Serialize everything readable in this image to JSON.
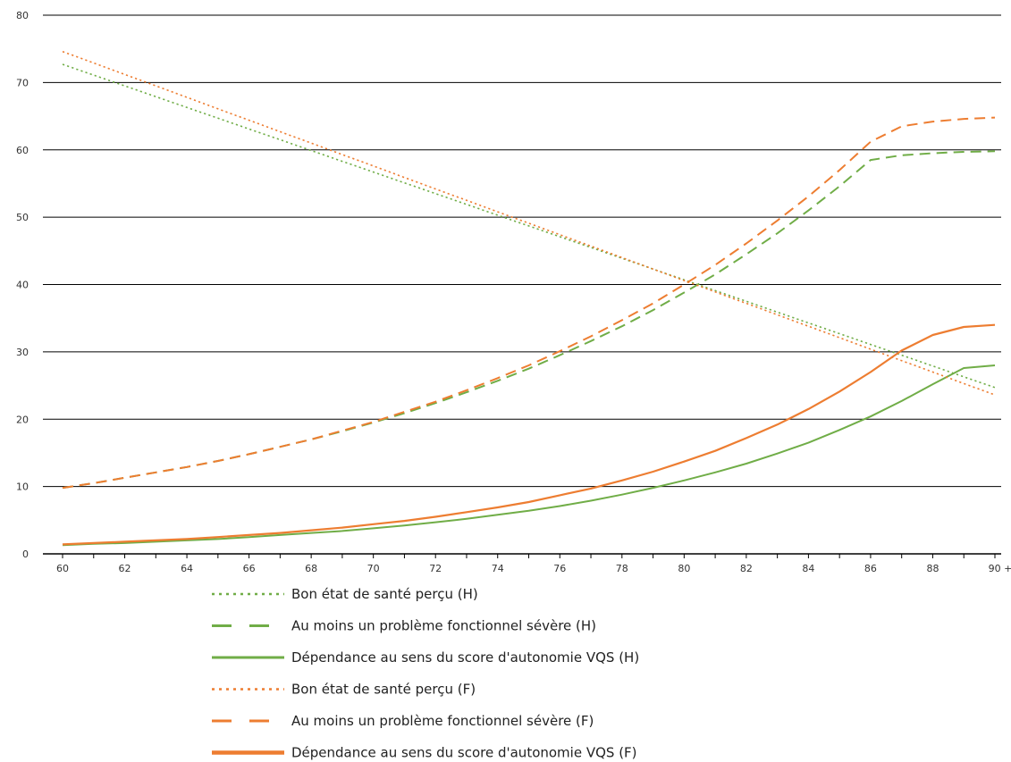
{
  "chart_data": {
    "type": "line",
    "title": "",
    "xlabel": "",
    "ylabel": "",
    "x_ticks": [
      "60",
      "62",
      "64",
      "66",
      "68",
      "70",
      "72",
      "74",
      "76",
      "78",
      "80",
      "82",
      "84",
      "86",
      "88",
      "90 +"
    ],
    "ylim": [
      0,
      80
    ],
    "y_ticks": [
      0,
      10,
      20,
      30,
      40,
      50,
      60,
      70,
      80
    ],
    "grid": true,
    "legend_position": "bottom",
    "x": [
      60,
      61,
      62,
      63,
      64,
      65,
      66,
      67,
      68,
      69,
      70,
      71,
      72,
      73,
      74,
      75,
      76,
      77,
      78,
      79,
      80,
      81,
      82,
      83,
      84,
      85,
      86,
      87,
      88,
      89,
      90
    ],
    "series": [
      {
        "name": "Bon état de santé perçu (H)",
        "color": "#70AD47",
        "style": "dotted",
        "values": [
          72.7,
          71.1,
          69.5,
          67.9,
          66.3,
          64.7,
          63.1,
          61.5,
          59.9,
          58.3,
          56.7,
          55.1,
          53.5,
          51.9,
          50.3,
          48.7,
          47.1,
          45.5,
          43.9,
          42.3,
          40.7,
          39.1,
          37.5,
          35.9,
          34.3,
          32.7,
          31.1,
          29.5,
          27.9,
          26.3,
          24.7
        ]
      },
      {
        "name": "Au moins un problème fonctionnel sévère (H)",
        "color": "#70AD47",
        "style": "dashed",
        "values": [
          9.8,
          10.5,
          11.3,
          12.1,
          12.9,
          13.8,
          14.8,
          15.9,
          17.0,
          18.2,
          19.5,
          20.9,
          22.4,
          24.0,
          25.7,
          27.5,
          29.5,
          31.6,
          33.8,
          36.2,
          38.8,
          41.5,
          44.5,
          47.6,
          51.0,
          54.6,
          58.5,
          59.2,
          59.5,
          59.7,
          59.8
        ]
      },
      {
        "name": "Dépendance au sens du score d'autonomie VQS (H)",
        "color": "#70AD47",
        "style": "solid",
        "values": [
          1.3,
          1.5,
          1.6,
          1.8,
          2.0,
          2.2,
          2.5,
          2.8,
          3.1,
          3.4,
          3.8,
          4.2,
          4.7,
          5.2,
          5.8,
          6.4,
          7.1,
          7.9,
          8.8,
          9.8,
          10.9,
          12.1,
          13.4,
          14.9,
          16.5,
          18.4,
          20.4,
          22.7,
          25.2,
          27.6,
          28.0
        ]
      },
      {
        "name": "Bon état de santé perçu (F)",
        "color": "#ED7D31",
        "style": "dotted",
        "values": [
          74.6,
          72.9,
          71.2,
          69.5,
          67.8,
          66.1,
          64.4,
          62.7,
          61.0,
          59.3,
          57.6,
          55.9,
          54.2,
          52.5,
          50.8,
          49.1,
          47.4,
          45.7,
          44.0,
          42.3,
          40.6,
          38.9,
          37.2,
          35.5,
          33.8,
          32.1,
          30.4,
          28.7,
          27.0,
          25.3,
          23.6
        ]
      },
      {
        "name": "Au moins un problème fonctionnel sévère (F)",
        "color": "#ED7D31",
        "style": "dashed",
        "values": [
          9.8,
          10.5,
          11.3,
          12.1,
          12.9,
          13.8,
          14.8,
          15.9,
          17.0,
          18.3,
          19.6,
          21.1,
          22.6,
          24.3,
          26.1,
          28.0,
          30.1,
          32.3,
          34.7,
          37.2,
          40.0,
          42.9,
          46.1,
          49.5,
          53.1,
          57.0,
          61.2,
          63.5,
          64.2,
          64.6,
          64.8
        ]
      },
      {
        "name": "Dépendance au sens du score d'autonomie VQS (F)",
        "color": "#ED7D31",
        "style": "solid",
        "values": [
          1.4,
          1.6,
          1.8,
          2.0,
          2.2,
          2.5,
          2.8,
          3.1,
          3.5,
          3.9,
          4.4,
          4.9,
          5.5,
          6.2,
          6.9,
          7.7,
          8.7,
          9.7,
          10.9,
          12.2,
          13.7,
          15.3,
          17.2,
          19.2,
          21.5,
          24.1,
          27.0,
          30.2,
          32.5,
          33.7,
          34.0
        ]
      }
    ]
  }
}
